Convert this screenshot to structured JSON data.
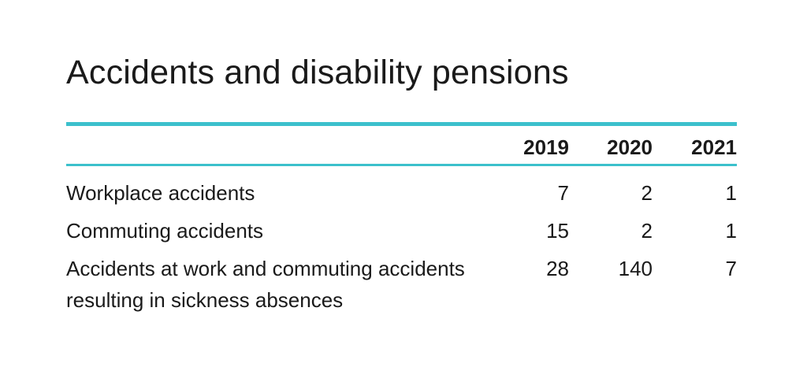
{
  "title": "Accidents and disability pensions",
  "table": {
    "headers": [
      "2019",
      "2020",
      "2021"
    ],
    "rows": [
      {
        "label": "Workplace accidents",
        "values": [
          "7",
          "2",
          "1"
        ]
      },
      {
        "label": "Commuting accidents",
        "values": [
          "15",
          "2",
          "1"
        ]
      },
      {
        "label": "Accidents at work and commuting accidents resulting in sickness absences",
        "values": [
          "28",
          "140",
          "7"
        ]
      }
    ]
  },
  "colors": {
    "accent_rule": "#3cc0cc",
    "text": "#1a1a1a"
  },
  "chart_data": {
    "type": "table",
    "title": "Accidents and disability pensions",
    "columns": [
      "2019",
      "2020",
      "2021"
    ],
    "rows": [
      {
        "name": "Workplace accidents",
        "values": [
          7,
          2,
          1
        ]
      },
      {
        "name": "Commuting accidents",
        "values": [
          15,
          2,
          1
        ]
      },
      {
        "name": "Accidents at work and commuting accidents resulting in sickness absences",
        "values": [
          28,
          140,
          7
        ]
      }
    ]
  }
}
